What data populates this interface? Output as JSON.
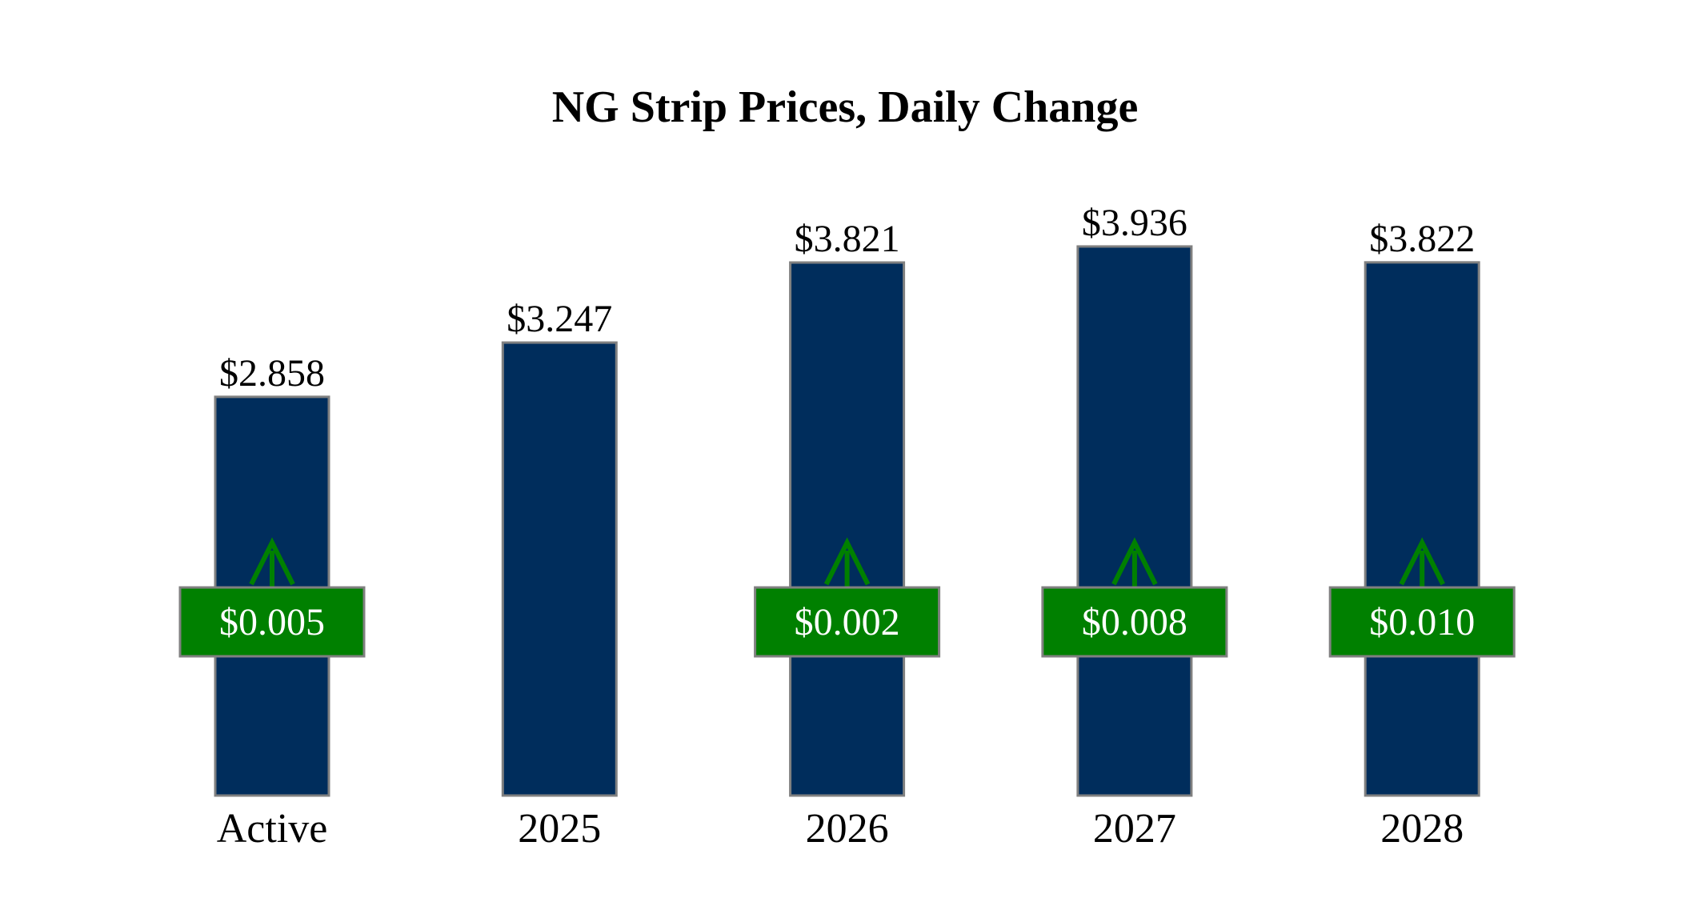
{
  "chart_data": {
    "type": "bar",
    "title": "NG Strip Prices, Daily Change",
    "xlabel": "",
    "ylabel": "",
    "categories": [
      "Active",
      "2025",
      "2026",
      "2027",
      "2028"
    ],
    "values": [
      2.858,
      3.247,
      3.821,
      3.936,
      3.822
    ],
    "value_labels": [
      "$2.858",
      "$3.247",
      "$3.821",
      "$3.936",
      "$3.822"
    ],
    "changes": [
      0.005,
      null,
      0.002,
      0.008,
      0.01
    ],
    "change_labels": [
      "$0.005",
      null,
      "$0.002",
      "$0.008",
      "$0.010"
    ],
    "change_direction": [
      "up",
      null,
      "up",
      "up",
      "up"
    ],
    "ylim": [
      0,
      4.5
    ],
    "grid": false,
    "legend": "none",
    "colors": {
      "bar": "#002d5c",
      "bar_edge": "#808080",
      "change_box": "#008000",
      "change_box_edge": "#808080",
      "arrow": "#008000",
      "change_text": "#ffffff",
      "text": "#000000"
    }
  }
}
